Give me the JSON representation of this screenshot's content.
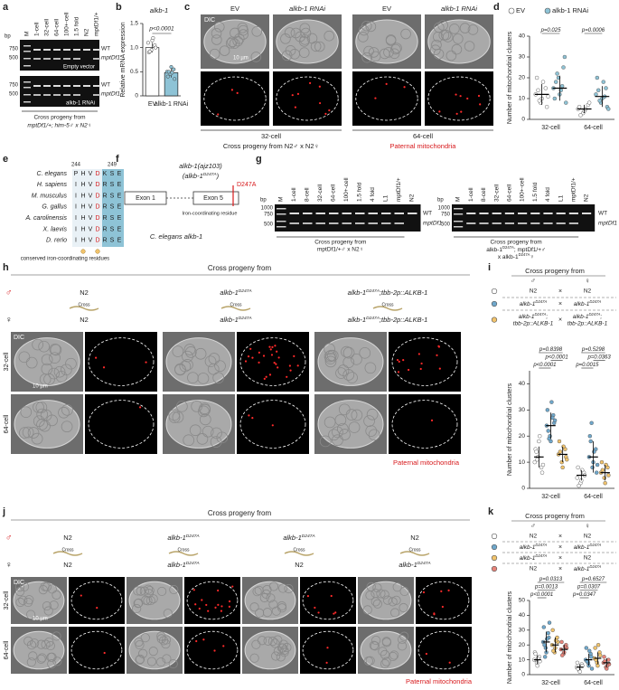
{
  "panel_labels": [
    "a",
    "b",
    "c",
    "d",
    "e",
    "f",
    "g",
    "h",
    "i",
    "j",
    "k"
  ],
  "a": {
    "bp": "bp",
    "lanes": [
      "M",
      "1-cell",
      "32-cell",
      "64-cell",
      "100+-cell",
      "1.5 fold",
      "N2",
      "mptDf1/+"
    ],
    "markers": [
      "750",
      "500"
    ],
    "bands": [
      "WT",
      "mptDf1"
    ],
    "conditions": [
      "Empty vector",
      "alkb-1 RNAi"
    ],
    "caption": [
      "Cross progeny from",
      "mptDf1/+; him-5♂ x N2♀"
    ]
  },
  "c": {
    "columns": [
      "EV",
      "alkb-1 RNAi",
      "EV",
      "alkb-1 RNAi"
    ],
    "dic": "DIC",
    "scale": "10 µm",
    "stages": [
      "32-cell",
      "64-cell"
    ],
    "caption": "Cross progeny from N2♂ x N2♀",
    "paternal": "Paternal mitochondria"
  },
  "e": {
    "positions": [
      "244",
      "249"
    ],
    "species": [
      "C. elegans",
      "H. sapiens",
      "M. musculus",
      "G. gallus",
      "A. carolinensis",
      "X. laevis",
      "D. rerio"
    ],
    "residues": [
      [
        "P",
        "H",
        "V",
        "D",
        "K",
        "S",
        "E"
      ],
      [
        "I",
        "H",
        "V",
        "D",
        "R",
        "S",
        "E"
      ],
      [
        "I",
        "H",
        "V",
        "D",
        "R",
        "S",
        "E"
      ],
      [
        "I",
        "H",
        "V",
        "D",
        "R",
        "S",
        "E"
      ],
      [
        "I",
        "H",
        "V",
        "D",
        "R",
        "S",
        "E"
      ],
      [
        "I",
        "H",
        "V",
        "D",
        "R",
        "S",
        "E"
      ],
      [
        "I",
        "H",
        "V",
        "D",
        "R",
        "S",
        "E"
      ]
    ],
    "caption": "conserved iron-coordinating residues"
  },
  "f": {
    "title": "alkb-1(ajz103)",
    "subtitle": "(alkb-1D247A)",
    "exons": [
      "Exon 1",
      "Exon 5"
    ],
    "mutation": "D247A",
    "note": "Iron-coordinating residue",
    "caption": "C. elegans alkb-1"
  },
  "g": {
    "bp": "bp",
    "markers": [
      "1000",
      "750",
      "500"
    ],
    "bands": [
      "WT",
      "mptDf1"
    ],
    "gels": [
      {
        "lanes": [
          "M",
          "1-cell",
          "8-cell",
          "32-cell",
          "64-cell",
          "100+-cell",
          "1.5 fold",
          "4 fold",
          "L1",
          "mptDf1/+",
          "N2"
        ],
        "caption": [
          "Cross progeny from",
          "mptDf1/+♂ x N2♀"
        ]
      },
      {
        "lanes": [
          "M",
          "1-cell",
          "8-cell",
          "32-cell",
          "64-cell",
          "100+-cell",
          "1.5 fold",
          "4 fold",
          "L1",
          "mptDf1/+",
          "N2"
        ],
        "caption": [
          "Cross progeny from",
          "alkb-1D247A; mptDf1/+♂",
          "x alkb-1D247A♀"
        ]
      }
    ]
  },
  "h": {
    "header": "Cross progeny from",
    "male": "♂",
    "female": "♀",
    "cross": "Cross",
    "males": [
      "N2",
      "alkb-1D247A",
      "alkb-1D247A;tbb-2p::ALKB-1"
    ],
    "females": [
      "N2",
      "alkb-1D247A",
      "alkb-1D247A;tbb-2p::ALKB-1"
    ],
    "dic": "DIC",
    "scale": "10 µm",
    "stages": [
      "32-cell",
      "64-cell"
    ],
    "paternal": "Paternal mitochondria"
  },
  "j": {
    "header": "Cross progeny from",
    "male": "♂",
    "female": "♀",
    "cross": "Cross",
    "males": [
      "N2",
      "alkb-1D247A",
      "alkb-1D247A",
      "N2"
    ],
    "females": [
      "N2",
      "alkb-1D247A",
      "N2",
      "alkb-1D247A"
    ],
    "dic": "DIC",
    "scale": "10 µm",
    "stages": [
      "32-cell",
      "64-cell"
    ],
    "paternal": "Paternal mitochondria"
  },
  "chart_data": [
    {
      "type": "bar",
      "title": "alkb-1",
      "ylabel": "Relative mRNA expression",
      "categories": [
        "EV",
        "alkb-1 RNAi"
      ],
      "colors": [
        "#ffffff",
        "#8ec3d6"
      ],
      "values": [
        1.0,
        0.48
      ],
      "sd": [
        0.1,
        0.1
      ],
      "points": [
        [
          1.1,
          0.95,
          1.05,
          0.9,
          1.15,
          1.0,
          0.92,
          1.2
        ],
        [
          0.5,
          0.45,
          0.55,
          0.4,
          0.6,
          0.35,
          0.5,
          0.48
        ]
      ],
      "p_value": "p<0.0001",
      "ylim": [
        0,
        1.5
      ],
      "yticks": [
        0,
        0.5,
        {
          "value": 1,
          "label": "1.0"
        },
        1.5
      ]
    },
    {
      "type": "dot",
      "ylabel": "Number of mitochondrial clusters",
      "categories": [
        "32-cell",
        "64-cell"
      ],
      "ylim": [
        0,
        40
      ],
      "yticks": [
        0,
        10,
        20,
        30,
        40
      ],
      "series": [
        {
          "name": "EV",
          "color": "#ffffff",
          "points": [
            [
              12,
              8,
              15,
              20,
              10,
              6,
              14,
              18,
              11,
              9
            ],
            [
              5,
              3,
              7,
              6,
              4,
              8,
              2,
              5
            ]
          ],
          "mean": [
            12,
            5
          ],
          "sd": [
            5,
            2
          ]
        },
        {
          "name": "alkb-1 RNAi",
          "color": "#8ec3d6",
          "points": [
            [
              15,
              20,
              25,
              10,
              12,
              30,
              18,
              14,
              8,
              22,
              16
            ],
            [
              12,
              8,
              15,
              20,
              10,
              6,
              14,
              18,
              5,
              9,
              11
            ]
          ],
          "mean": [
            15,
            11
          ],
          "sd": [
            6,
            5
          ]
        }
      ],
      "p_values": [
        [
          "p=0.025"
        ],
        [
          "p=0.0006"
        ]
      ]
    },
    {
      "type": "dot",
      "legend_title": "Cross progeny from",
      "male": "♂",
      "female": "♀",
      "cross": "×",
      "ylabel": "Number of mitochondrial clusters",
      "categories": [
        "32-cell",
        "64-cell"
      ],
      "ylim": [
        0,
        45
      ],
      "yticks": [
        0,
        10,
        20,
        30,
        40
      ],
      "series": [
        {
          "male": "N2",
          "female": "N2",
          "color": "#ffffff",
          "points": [
            [
              10,
              12,
              8,
              15,
              18,
              6,
              14,
              20,
              9,
              11
            ],
            [
              4,
              2,
              6,
              8,
              3,
              5,
              1,
              7
            ]
          ],
          "mean": [
            12,
            5
          ],
          "sd": [
            4,
            2
          ]
        },
        {
          "male": "alkb-1D247A",
          "female": "alkb-1D247A",
          "color": "#6fa8cc",
          "points": [
            [
              24,
              20,
              28,
              30,
              18,
              25,
              22,
              33,
              26,
              19,
              27
            ],
            [
              12,
              8,
              15,
              20,
              10,
              6,
              18,
              14,
              9,
              25
            ]
          ],
          "mean": [
            24,
            12
          ],
          "sd": [
            5,
            6
          ]
        },
        {
          "male": [
            "alkb-1D247A;",
            "tbb-2p::ALKB-1"
          ],
          "female": [
            "alkb-1D247A;",
            "tbb-2p::ALKB-1"
          ],
          "color": "#f2c46d",
          "points": [
            [
              13,
              10,
              15,
              18,
              8,
              12,
              14,
              16,
              11
            ],
            [
              6,
              4,
              8,
              10,
              2,
              5,
              7,
              9
            ]
          ],
          "mean": [
            13,
            6
          ],
          "sd": [
            3,
            3
          ]
        }
      ],
      "p_values": [
        [
          "p=0.8398",
          "p<0.0001",
          "p<0.0001"
        ],
        [
          "p=0.5298",
          "p=0.0363",
          "p=0.0015"
        ]
      ]
    },
    {
      "type": "dot",
      "legend_title": "Cross progeny from",
      "male": "♂",
      "female": "♀",
      "cross": "×",
      "ylabel": "Number of mitochondrial clusters",
      "categories": [
        "32-cell",
        "64-cell"
      ],
      "ylim": [
        0,
        50
      ],
      "yticks": [
        0,
        10,
        20,
        30,
        40,
        50
      ],
      "series": [
        {
          "male": "N2",
          "female": "N2",
          "color": "#ffffff",
          "points": [
            [
              10,
              8,
              12,
              15,
              6,
              9,
              14,
              11
            ],
            [
              5,
              3,
              7,
              8,
              2,
              6,
              4
            ]
          ],
          "mean": [
            10,
            5
          ],
          "sd": [
            3,
            2
          ]
        },
        {
          "male": "alkb-1D247A",
          "female": "alkb-1D247A",
          "color": "#6fa8cc",
          "points": [
            [
              22,
              18,
              28,
              32,
              15,
              25,
              20,
              24,
              35,
              12
            ],
            [
              10,
              8,
              14,
              18,
              6,
              12,
              9,
              16,
              4
            ]
          ],
          "mean": [
            22,
            10
          ],
          "sd": [
            7,
            4
          ]
        },
        {
          "male": "alkb-1D247A",
          "female": "N2",
          "color": "#f2c46d",
          "points": [
            [
              20,
              15,
              25,
              30,
              18,
              22,
              16,
              23
            ],
            [
              11,
              8,
              15,
              18,
              6,
              13,
              10,
              20
            ]
          ],
          "mean": [
            20,
            11
          ],
          "sd": [
            5,
            4
          ]
        },
        {
          "male": "N2",
          "female": "alkb-1D247A",
          "color": "#e8847a",
          "points": [
            [
              17,
              14,
              20,
              22,
              15,
              18,
              13,
              19
            ],
            [
              8,
              5,
              10,
              12,
              4,
              7,
              9,
              6
            ]
          ],
          "mean": [
            17,
            8
          ],
          "sd": [
            3,
            3
          ]
        }
      ],
      "p_values": [
        [
          "p=0.0313",
          "p=0.0013",
          "p<0.0001"
        ],
        [
          "p=0.6527",
          "p=0.0307",
          "p=0.0347"
        ]
      ]
    }
  ]
}
